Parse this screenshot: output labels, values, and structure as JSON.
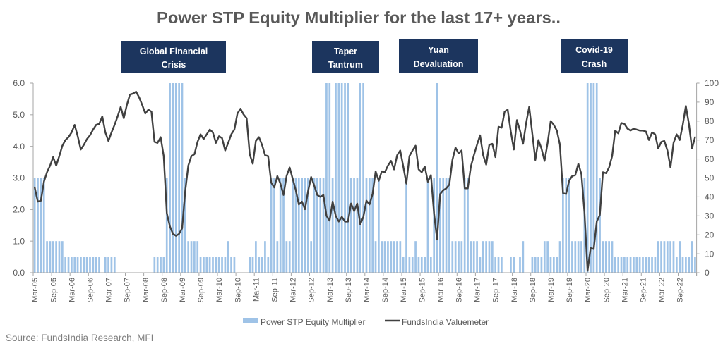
{
  "colors": {
    "bar": "#9fc3e7",
    "line": "#404040",
    "annotation_box": "#1c355e",
    "annotation_text": "#ffffff",
    "title": "#595959",
    "axis_text": "#595959",
    "axis_line": "#a6a6a6",
    "source_text": "#7f7f7f"
  },
  "source": "Source: FundsIndia Research, MFI",
  "chart_data": {
    "type": "bar+line",
    "title": "Power STP Equity Multiplier for the last 17+ years..",
    "xlabel": "",
    "legend": {
      "placement": "bottom",
      "entries": [
        "Power STP Equity Multiplier",
        "FundsIndia Valuemeter"
      ]
    },
    "grid": false,
    "annotations": [
      {
        "lines": [
          "Global Financial",
          "Crisis"
        ],
        "near": "Sep-08 to Apr-09"
      },
      {
        "lines": [
          "Taper",
          "Tantrum"
        ],
        "near": "May-13 to Feb-14"
      },
      {
        "lines": [
          "Yuan",
          "Devaluation"
        ],
        "near": "Feb-16"
      },
      {
        "lines": [
          "Covid-19",
          "Crash"
        ],
        "near": "Mar-20 to Jun-20"
      }
    ],
    "y_left": {
      "label": "",
      "series": "Power STP Equity Multiplier",
      "min": 0,
      "max": 6,
      "tick_labels": [
        "0.0",
        "1.0",
        "2.0",
        "3.0",
        "4.0",
        "5.0",
        "6.0"
      ]
    },
    "y_right": {
      "label": "",
      "series": "FundsIndia Valuemeter",
      "min": 0,
      "max": 100,
      "tick_labels": [
        "0",
        "10",
        "20",
        "30",
        "40",
        "50",
        "60",
        "70",
        "80",
        "90",
        "100"
      ]
    },
    "x_tick_labels": [
      "Mar-05",
      "Sep-05",
      "Mar-06",
      "Sep-06",
      "Mar-07",
      "Sep-07",
      "Mar-08",
      "Sep-08",
      "Mar-09",
      "Sep-09",
      "Mar-10",
      "Sep-10",
      "Mar-11",
      "Sep-11",
      "Mar-12",
      "Sep-12",
      "Mar-13",
      "Sep-13",
      "Mar-14",
      "Sep-14",
      "Mar-15",
      "Sep-15",
      "Mar-16",
      "Sep-16",
      "Mar-17",
      "Sep-17",
      "Mar-18",
      "Sep-18",
      "Mar-19",
      "Sep-19",
      "Mar-20",
      "Sep-20",
      "Mar-21",
      "Sep-21",
      "Mar-22",
      "Sep-22"
    ],
    "categories": [
      "Mar-05",
      "Apr-05",
      "May-05",
      "Jun-05",
      "Jul-05",
      "Aug-05",
      "Sep-05",
      "Oct-05",
      "Nov-05",
      "Dec-05",
      "Jan-06",
      "Feb-06",
      "Mar-06",
      "Apr-06",
      "May-06",
      "Jun-06",
      "Jul-06",
      "Aug-06",
      "Sep-06",
      "Oct-06",
      "Nov-06",
      "Dec-06",
      "Jan-07",
      "Feb-07",
      "Mar-07",
      "Apr-07",
      "May-07",
      "Jun-07",
      "Jul-07",
      "Aug-07",
      "Sep-07",
      "Oct-07",
      "Nov-07",
      "Dec-07",
      "Jan-08",
      "Feb-08",
      "Mar-08",
      "Apr-08",
      "May-08",
      "Jun-08",
      "Jul-08",
      "Aug-08",
      "Sep-08",
      "Oct-08",
      "Nov-08",
      "Dec-08",
      "Jan-09",
      "Feb-09",
      "Mar-09",
      "Apr-09",
      "May-09",
      "Jun-09",
      "Jul-09",
      "Aug-09",
      "Sep-09",
      "Oct-09",
      "Nov-09",
      "Dec-09",
      "Jan-10",
      "Feb-10",
      "Mar-10",
      "Apr-10",
      "May-10",
      "Jun-10",
      "Jul-10",
      "Aug-10",
      "Sep-10",
      "Oct-10",
      "Nov-10",
      "Dec-10",
      "Jan-11",
      "Feb-11",
      "Mar-11",
      "Apr-11",
      "May-11",
      "Jun-11",
      "Jul-11",
      "Aug-11",
      "Sep-11",
      "Oct-11",
      "Nov-11",
      "Dec-11",
      "Jan-12",
      "Feb-12",
      "Mar-12",
      "Apr-12",
      "May-12",
      "Jun-12",
      "Jul-12",
      "Aug-12",
      "Sep-12",
      "Oct-12",
      "Nov-12",
      "Dec-12",
      "Jan-13",
      "Feb-13",
      "Mar-13",
      "Apr-13",
      "May-13",
      "Jun-13",
      "Jul-13",
      "Aug-13",
      "Sep-13",
      "Oct-13",
      "Nov-13",
      "Dec-13",
      "Jan-14",
      "Feb-14",
      "Mar-14",
      "Apr-14",
      "May-14",
      "Jun-14",
      "Jul-14",
      "Aug-14",
      "Sep-14",
      "Oct-14",
      "Nov-14",
      "Dec-14",
      "Jan-15",
      "Feb-15",
      "Mar-15",
      "Apr-15",
      "May-15",
      "Jun-15",
      "Jul-15",
      "Aug-15",
      "Sep-15",
      "Oct-15",
      "Nov-15",
      "Dec-15",
      "Jan-16",
      "Feb-16",
      "Mar-16",
      "Apr-16",
      "May-16",
      "Jun-16",
      "Jul-16",
      "Aug-16",
      "Sep-16",
      "Oct-16",
      "Nov-16",
      "Dec-16",
      "Jan-17",
      "Feb-17",
      "Mar-17",
      "Apr-17",
      "May-17",
      "Jun-17",
      "Jul-17",
      "Aug-17",
      "Sep-17",
      "Oct-17",
      "Nov-17",
      "Dec-17",
      "Jan-18",
      "Feb-18",
      "Mar-18",
      "Apr-18",
      "May-18",
      "Jun-18",
      "Jul-18",
      "Aug-18",
      "Sep-18",
      "Oct-18",
      "Nov-18",
      "Dec-18",
      "Jan-19",
      "Feb-19",
      "Mar-19",
      "Apr-19",
      "May-19",
      "Jun-19",
      "Jul-19",
      "Aug-19",
      "Sep-19",
      "Oct-19",
      "Nov-19",
      "Dec-19",
      "Jan-20",
      "Feb-20",
      "Mar-20",
      "Apr-20",
      "May-20",
      "Jun-20",
      "Jul-20",
      "Aug-20",
      "Sep-20",
      "Oct-20",
      "Nov-20",
      "Dec-20",
      "Jan-21",
      "Feb-21",
      "Mar-21",
      "Apr-21",
      "May-21",
      "Jun-21",
      "Jul-21",
      "Aug-21",
      "Sep-21",
      "Oct-21",
      "Nov-21",
      "Dec-21",
      "Jan-22",
      "Feb-22",
      "Mar-22",
      "Apr-22",
      "May-22",
      "Jun-22",
      "Jul-22",
      "Aug-22",
      "Sep-22",
      "Oct-22",
      "Nov-22",
      "Dec-22",
      "Jan-23",
      "Feb-23"
    ],
    "series": [
      {
        "name": "Power STP Equity Multiplier",
        "type": "bar",
        "axis": "left",
        "values": [
          3,
          3,
          3,
          3,
          1,
          1,
          1,
          1,
          1,
          1,
          0.5,
          0.5,
          0.5,
          0.5,
          0.5,
          0.5,
          0.5,
          0.5,
          0.5,
          0.5,
          0.5,
          0.5,
          0,
          0.5,
          0.5,
          0.5,
          0.5,
          0,
          0,
          0,
          0,
          0,
          0,
          0,
          0,
          0,
          0,
          0,
          0,
          0.5,
          0.5,
          0.5,
          0.5,
          3,
          6,
          6,
          6,
          6,
          6,
          3,
          1,
          1,
          1,
          1,
          0.5,
          0.5,
          0.5,
          0.5,
          0.5,
          0.5,
          0.5,
          0.5,
          0.5,
          1,
          0.5,
          0.5,
          0,
          0,
          0,
          0,
          0.5,
          0.5,
          1,
          0.5,
          0.5,
          1,
          0.5,
          3,
          3,
          1,
          3,
          3,
          1,
          1,
          3,
          3,
          3,
          3,
          3,
          3,
          1,
          3,
          3,
          3,
          3,
          6,
          6,
          3,
          6,
          6,
          6,
          6,
          6,
          3,
          3,
          3,
          6,
          6,
          3,
          3,
          3,
          1,
          3,
          1,
          1,
          1,
          1,
          1,
          1,
          1,
          0.5,
          3,
          0.5,
          0.5,
          1,
          0.5,
          0.5,
          0.5,
          3,
          0.5,
          3,
          6,
          3,
          3,
          3,
          3,
          1,
          1,
          1,
          1,
          3,
          3,
          1,
          1,
          1,
          0.5,
          1,
          1,
          1,
          1,
          0.5,
          0.5,
          0.5,
          0,
          0,
          0.5,
          0.5,
          0,
          0.5,
          1,
          0,
          0,
          0.5,
          0.5,
          0.5,
          0.5,
          1,
          1,
          0.5,
          0.5,
          0.5,
          1,
          3,
          3,
          3,
          1,
          1,
          1,
          1,
          3,
          6,
          6,
          6,
          6,
          3,
          1,
          1,
          1,
          1,
          0.5,
          0.5,
          0.5,
          0.5,
          0.5,
          0.5,
          0.5,
          0.5,
          0.5,
          0.5,
          0.5,
          0.5,
          0.5,
          0.5,
          1,
          1,
          1,
          1,
          1,
          1,
          0.5,
          1,
          0.5,
          0.5,
          0.5,
          1,
          0.5
        ]
      },
      {
        "name": "FundsIndia Valuemeter",
        "type": "line",
        "axis": "right",
        "values": [
          45,
          37.5,
          38,
          48,
          53,
          56.5,
          61,
          56.5,
          61.5,
          67,
          70,
          71.5,
          74,
          78,
          72,
          65,
          67.5,
          70.5,
          72.5,
          75.5,
          78,
          78.5,
          82.5,
          74,
          69.5,
          74,
          78,
          82.5,
          87.5,
          81.5,
          88.5,
          94,
          94.5,
          95.5,
          92.5,
          88.5,
          84,
          86,
          85,
          69,
          68.5,
          71.5,
          61.5,
          31.5,
          24.5,
          20.5,
          19.5,
          20.5,
          23.5,
          43,
          56.5,
          61.5,
          62.5,
          69,
          73,
          70.5,
          73,
          75.5,
          74,
          68.5,
          72,
          71,
          64.5,
          68.5,
          73,
          75.5,
          84,
          86.5,
          83.5,
          81.5,
          62.5,
          57.5,
          69.5,
          71.5,
          67.5,
          62,
          61.5,
          47.5,
          45,
          51,
          47,
          41,
          51,
          55.5,
          49.5,
          43.5,
          36,
          37.5,
          33.5,
          43,
          50.5,
          46,
          41,
          40,
          41,
          30,
          27.5,
          37.5,
          30,
          27,
          29.5,
          27,
          27,
          36.5,
          32.5,
          36.5,
          25.5,
          29.5,
          38,
          36,
          41.5,
          53.5,
          48.5,
          53.5,
          53,
          56.5,
          59,
          54.5,
          62,
          64.5,
          56,
          47,
          61.5,
          64.5,
          67,
          54.5,
          53,
          56,
          48,
          51.5,
          31.5,
          17.5,
          41.5,
          43.5,
          44.5,
          46.5,
          59.5,
          66,
          63,
          64.5,
          44.5,
          44.5,
          56,
          62,
          67.5,
          72.5,
          62,
          57,
          67.5,
          68,
          61,
          77,
          76.5,
          85,
          86,
          74.5,
          65,
          80.5,
          75,
          68,
          79,
          87.5,
          73.5,
          59.5,
          70,
          65.5,
          59,
          68.5,
          80,
          78,
          75,
          67.5,
          42,
          41.5,
          48.5,
          51,
          51.5,
          57.5,
          52,
          31.5,
          1,
          13,
          12.5,
          27,
          30.5,
          53,
          52.5,
          55.5,
          61.5,
          75,
          73.5,
          79,
          78.5,
          76,
          75,
          76,
          75.5,
          75,
          75,
          74.5,
          70,
          74,
          73,
          65.5,
          69,
          69.5,
          64.5,
          55.5,
          68.5,
          73,
          70,
          78,
          88,
          78.5,
          65.5,
          71.5
        ]
      }
    ]
  }
}
